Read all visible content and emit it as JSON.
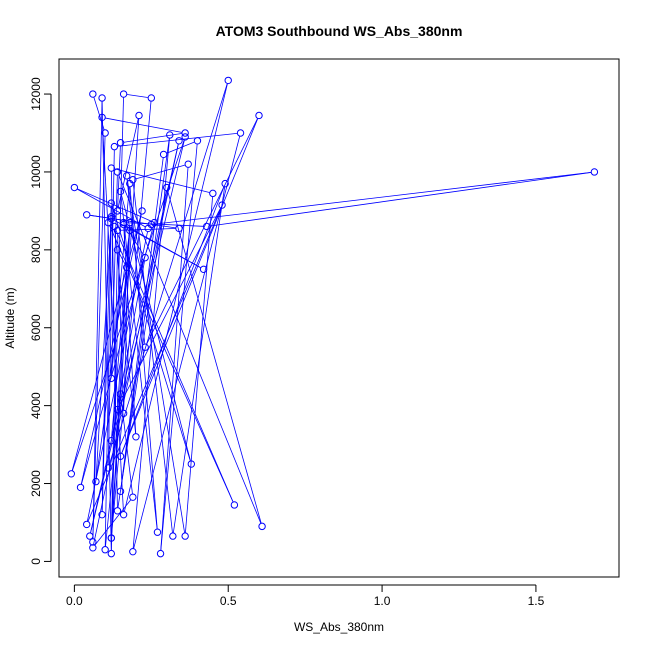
{
  "chart_data": {
    "type": "line",
    "title": "ATOM3 Southbound WS_Abs_380nm",
    "xlabel": "WS_Abs_380nm",
    "ylabel": "Altitude (m)",
    "xlim": [
      -0.05,
      1.77
    ],
    "ylim": [
      -400,
      12900
    ],
    "xticks": [
      0.0,
      0.5,
      1.0,
      1.5
    ],
    "xtick_labels": [
      "0.0",
      "0.5",
      "1.0",
      "1.5"
    ],
    "yticks": [
      0,
      2000,
      4000,
      6000,
      8000,
      10000,
      12000
    ],
    "ytick_labels": [
      "0",
      "2000",
      "4000",
      "6000",
      "8000",
      "10000",
      "12000"
    ],
    "grid": false,
    "series": [
      {
        "color": "#0000ff",
        "marker": "open-circle",
        "points": [
          {
            "x": 0.06,
            "y": 12000
          },
          {
            "x": 0.1,
            "y": 11000
          },
          {
            "x": 0.06,
            "y": 500
          },
          {
            "x": 0.09,
            "y": 11900
          },
          {
            "x": 0.12,
            "y": 200
          },
          {
            "x": 0.16,
            "y": 12000
          },
          {
            "x": 0.25,
            "y": 11900
          },
          {
            "x": 0.12,
            "y": 600
          },
          {
            "x": 0.21,
            "y": 11450
          },
          {
            "x": 0.14,
            "y": 9000
          },
          {
            "x": 0.15,
            "y": 10750
          },
          {
            "x": 0.36,
            "y": 11000
          },
          {
            "x": 0.09,
            "y": 11400
          },
          {
            "x": 0.16,
            "y": 1200
          },
          {
            "x": 0.5,
            "y": 12350
          },
          {
            "x": 0.11,
            "y": 2400
          },
          {
            "x": 0.13,
            "y": 10650
          },
          {
            "x": 0.54,
            "y": 11000
          },
          {
            "x": 0.19,
            "y": 250
          },
          {
            "x": 0.31,
            "y": 10950
          },
          {
            "x": 0.15,
            "y": 1800
          },
          {
            "x": 0.29,
            "y": 10450
          },
          {
            "x": 0.4,
            "y": 10800
          },
          {
            "x": 0.28,
            "y": 200
          },
          {
            "x": 0.37,
            "y": 10200
          },
          {
            "x": 0.19,
            "y": 9800
          },
          {
            "x": 0.32,
            "y": 650
          },
          {
            "x": 0.49,
            "y": 9700
          },
          {
            "x": 0.15,
            "y": 2700
          },
          {
            "x": 0.6,
            "y": 11450
          },
          {
            "x": 0.23,
            "y": 5500
          },
          {
            "x": 0.17,
            "y": 9900
          },
          {
            "x": 0.36,
            "y": 650
          },
          {
            "x": 0.45,
            "y": 9450
          },
          {
            "x": 0.12,
            "y": 10100
          },
          {
            "x": 0.14,
            "y": 1300
          },
          {
            "x": 0.3,
            "y": 9600
          },
          {
            "x": 0.61,
            "y": 900
          },
          {
            "x": 0.14,
            "y": 10000
          },
          {
            "x": 0.12,
            "y": 4700
          },
          {
            "x": 0.18,
            "y": 9700
          },
          {
            "x": 0.27,
            "y": 750
          },
          {
            "x": 0.15,
            "y": 9500
          },
          {
            "x": 0.38,
            "y": 2500
          },
          {
            "x": 0.12,
            "y": 9200
          },
          {
            "x": 0.09,
            "y": 1200
          },
          {
            "x": 0.11,
            "y": 8700
          },
          {
            "x": 0.52,
            "y": 1450
          },
          {
            "x": 0.13,
            "y": 8600
          },
          {
            "x": 0.2,
            "y": 3200
          },
          {
            "x": 0.16,
            "y": 8650
          },
          {
            "x": 0.42,
            "y": 7500
          },
          {
            "x": 0.12,
            "y": 8800
          },
          {
            "x": 0.07,
            "y": 2050
          },
          {
            "x": 0.18,
            "y": 8500
          },
          {
            "x": 0.12,
            "y": 3100
          },
          {
            "x": 0.23,
            "y": 7800
          },
          {
            "x": 0.16,
            "y": 8700
          },
          {
            "x": 0.43,
            "y": 8600
          },
          {
            "x": 1.69,
            "y": 10000
          },
          {
            "x": 0.25,
            "y": 8650
          },
          {
            "x": 0.04,
            "y": 8900
          },
          {
            "x": 0.34,
            "y": 8550
          },
          {
            "x": 0.14,
            "y": 8500
          },
          {
            "x": 0.16,
            "y": 3800
          },
          {
            "x": 0.18,
            "y": 8700
          },
          {
            "x": 0.12,
            "y": 600
          },
          {
            "x": 0.14,
            "y": 8000
          },
          {
            "x": 0.17,
            "y": 7550
          },
          {
            "x": 0.14,
            "y": 3900
          },
          {
            "x": 0.48,
            "y": 9150
          },
          {
            "x": 0.04,
            "y": 950
          },
          {
            "x": 0.24,
            "y": 8550
          },
          {
            "x": 0.0,
            "y": 9600
          },
          {
            "x": 0.26,
            "y": 8700
          },
          {
            "x": 0.02,
            "y": 1900
          },
          {
            "x": 0.22,
            "y": 9000
          },
          {
            "x": -0.01,
            "y": 2250
          },
          {
            "x": 0.36,
            "y": 10900
          },
          {
            "x": 0.05,
            "y": 650
          },
          {
            "x": 0.34,
            "y": 10800
          },
          {
            "x": 0.06,
            "y": 350
          },
          {
            "x": 0.19,
            "y": 1650
          },
          {
            "x": 0.15,
            "y": 4300
          },
          {
            "x": 0.1,
            "y": 300
          },
          {
            "x": 0.12,
            "y": 8850
          }
        ]
      }
    ]
  }
}
